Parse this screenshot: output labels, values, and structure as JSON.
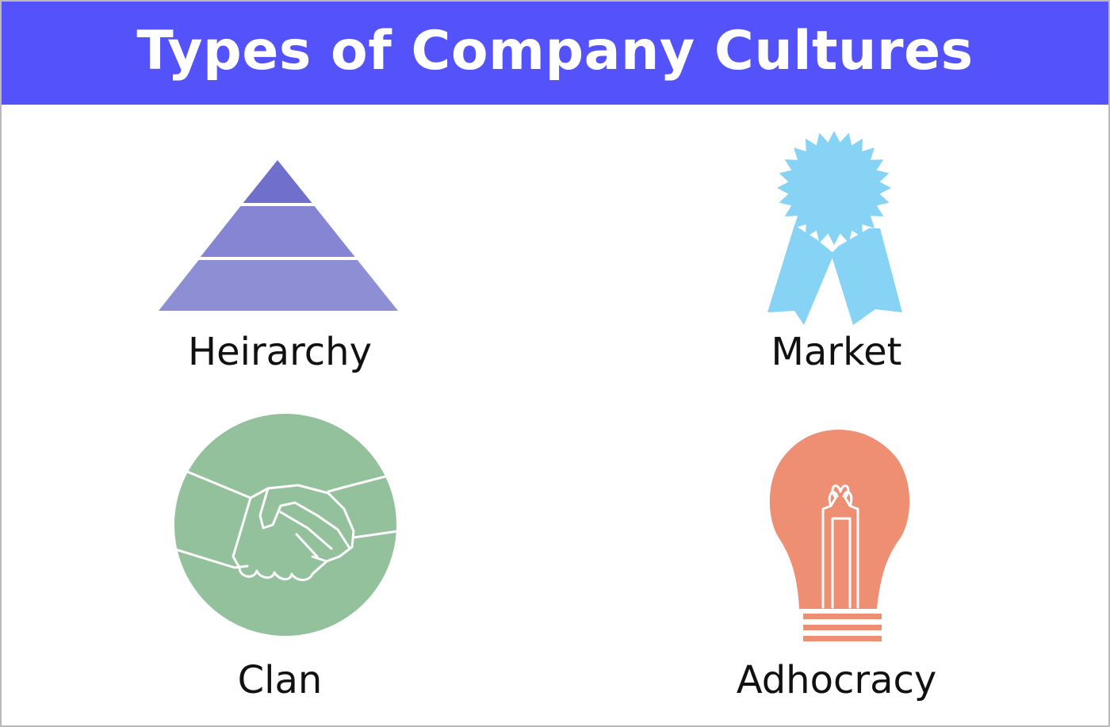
{
  "title": "Types of Company Cultures",
  "colors": {
    "header": "#5452fb",
    "hierarchy": "#8e8ed4",
    "market": "#86d3f5",
    "clan": "#93c19c",
    "adhocracy": "#ee8e73"
  },
  "quadrants": [
    {
      "label": "Heirarchy",
      "icon": "pyramid-icon"
    },
    {
      "label": "Market",
      "icon": "award-ribbon-icon"
    },
    {
      "label": "Clan",
      "icon": "handshake-icon"
    },
    {
      "label": "Adhocracy",
      "icon": "lightbulb-icon"
    }
  ]
}
